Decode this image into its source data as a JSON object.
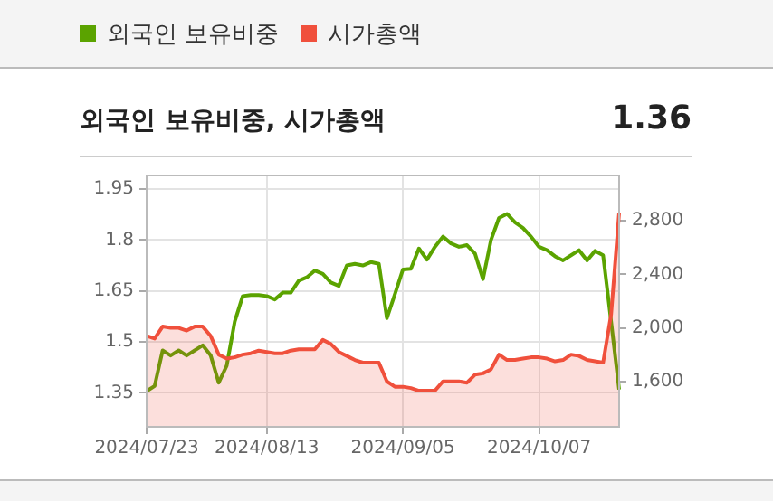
{
  "chart_data": {
    "type": "line",
    "title": "외국인 보유비중, 시가총액",
    "annotations": [
      "1.36"
    ],
    "categories": [
      "2024/07/23",
      null,
      null,
      null,
      null,
      null,
      null,
      null,
      null,
      null,
      null,
      null,
      null,
      null,
      null,
      "2024/08/13",
      null,
      null,
      null,
      null,
      null,
      null,
      null,
      null,
      null,
      null,
      null,
      null,
      null,
      null,
      null,
      null,
      "2024/09/05",
      null,
      null,
      null,
      null,
      null,
      null,
      null,
      null,
      null,
      null,
      null,
      null,
      null,
      null,
      null,
      null,
      "2024/10/07",
      null,
      null,
      null,
      null,
      null,
      null,
      null,
      null,
      null,
      null
    ],
    "series": [
      {
        "name": "외국인 보유비중",
        "color": "#5ba300",
        "values": [
          1.355,
          1.37,
          1.475,
          1.46,
          1.475,
          1.46,
          1.475,
          1.49,
          1.46,
          1.38,
          1.43,
          1.56,
          1.635,
          1.638,
          1.638,
          1.635,
          1.625,
          1.645,
          1.645,
          1.68,
          1.69,
          1.71,
          1.7,
          1.675,
          1.665,
          1.725,
          1.73,
          1.725,
          1.735,
          1.73,
          1.57,
          1.64,
          1.713,
          1.715,
          1.775,
          1.742,
          1.78,
          1.81,
          1.79,
          1.78,
          1.785,
          1.76,
          1.685,
          1.8,
          1.865,
          1.877,
          1.852,
          1.835,
          1.81,
          1.78,
          1.77,
          1.752,
          1.74,
          1.755,
          1.77,
          1.74,
          1.768,
          1.755,
          1.56,
          1.36
        ]
      },
      {
        "name": "시가총액",
        "type": "area",
        "axis": "y2",
        "color": "#f0503c",
        "values": [
          1940,
          1920,
          2010,
          2000,
          2000,
          1980,
          2010,
          2010,
          1940,
          1800,
          1770,
          1780,
          1800,
          1810,
          1830,
          1820,
          1810,
          1810,
          1830,
          1840,
          1840,
          1840,
          1910,
          1880,
          1820,
          1790,
          1760,
          1740,
          1740,
          1740,
          1600,
          1560,
          1560,
          1550,
          1530,
          1530,
          1530,
          1600,
          1600,
          1600,
          1590,
          1650,
          1660,
          1690,
          1800,
          1760,
          1760,
          1770,
          1780,
          1780,
          1770,
          1750,
          1760,
          1800,
          1790,
          1760,
          1750,
          1740,
          2100,
          2860
        ]
      }
    ],
    "ylim": [
      1.25,
      1.99
    ],
    "yticks": [
      1.35,
      1.5,
      1.65,
      1.8,
      1.95
    ],
    "y2lim": [
      1260,
      3140
    ],
    "y2ticks": [
      {
        "value": 1600,
        "label": "1,600"
      },
      {
        "value": 2000,
        "label": "2,000"
      },
      {
        "value": 2400,
        "label": "2,400"
      },
      {
        "value": 2800,
        "label": "2,800"
      }
    ],
    "grid": true,
    "legend": "top",
    "marker": "none",
    "line_style": "solid"
  }
}
